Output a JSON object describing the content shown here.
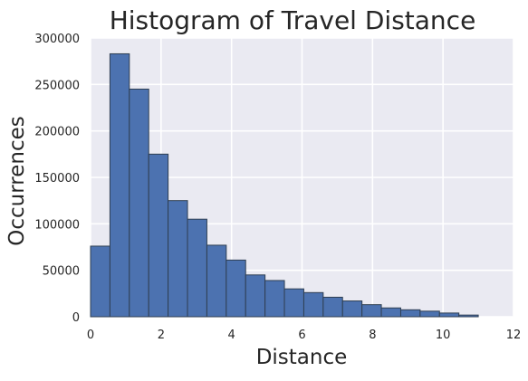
{
  "chart_data": {
    "type": "bar",
    "title": "Histogram of Travel Distance",
    "xlabel": "Distance",
    "ylabel": "Occurrences",
    "xlim": [
      0,
      12
    ],
    "ylim": [
      0,
      300000
    ],
    "grid": true,
    "bin_width": 0.55,
    "bin_starts": [
      0,
      0.55,
      1.1,
      1.65,
      2.2,
      2.75,
      3.3,
      3.85,
      4.4,
      4.95,
      5.5,
      6.05,
      6.6,
      7.15,
      7.7,
      8.25,
      8.8,
      9.35,
      9.9,
      10.45
    ],
    "values": [
      76000,
      283000,
      245000,
      175000,
      125000,
      105000,
      77000,
      61000,
      45000,
      39000,
      30000,
      26000,
      21000,
      17000,
      13000,
      9500,
      7500,
      6000,
      4000,
      1800
    ],
    "x_ticks": [
      "0",
      "2",
      "4",
      "6",
      "8",
      "10",
      "12"
    ],
    "y_ticks": [
      "0",
      "50000",
      "100000",
      "150000",
      "200000",
      "250000",
      "300000"
    ],
    "colors": {
      "bar_fill": "#4c72b0",
      "bar_edge": "#2f3f52",
      "plot_bg": "#eaeaf2",
      "grid": "#ffffff"
    }
  }
}
